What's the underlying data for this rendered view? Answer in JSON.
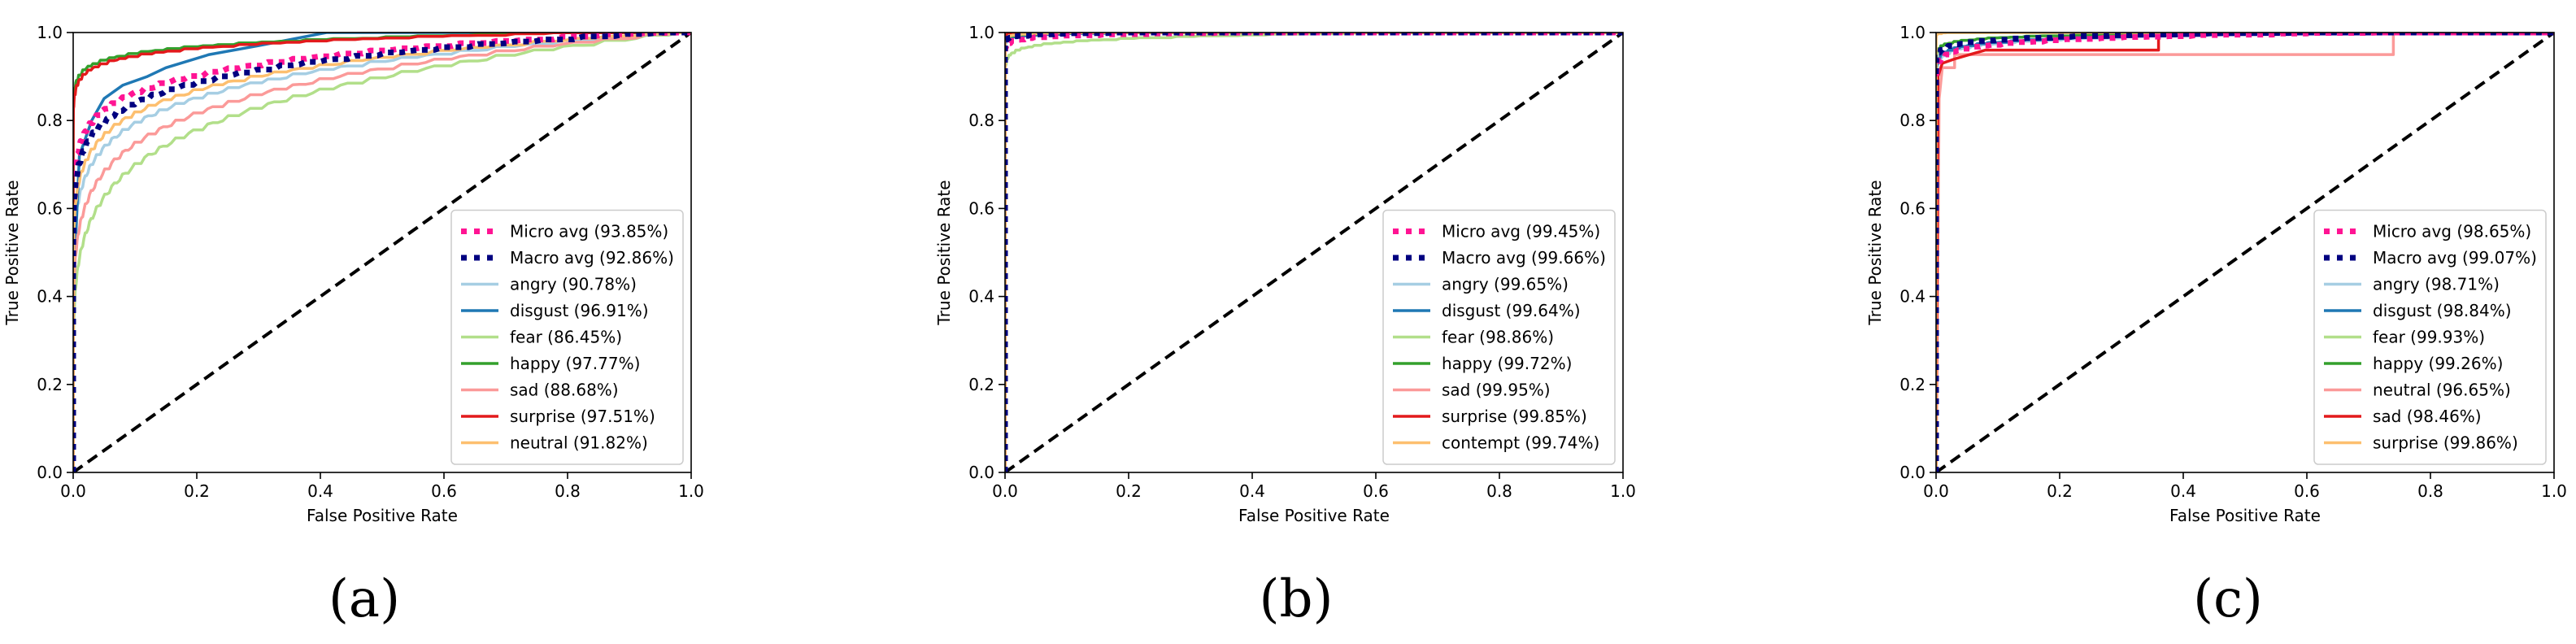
{
  "figure": {
    "panel_labels": [
      "(a)",
      "(b)",
      "(c)"
    ]
  },
  "chart_data": [
    {
      "type": "line",
      "panel": "(a)",
      "xlabel": "False Positive Rate",
      "ylabel": "True Positive Rate",
      "xlim": [
        0,
        1
      ],
      "ylim": [
        0,
        1.0
      ],
      "xticks": [
        "0.0",
        "0.2",
        "0.4",
        "0.6",
        "0.8",
        "1.0"
      ],
      "yticks": [
        "0.0",
        "0.2",
        "0.4",
        "0.6",
        "0.8",
        "1.0"
      ],
      "legend_position": "lower-right",
      "series": [
        {
          "name": "Micro avg",
          "label": "Micro avg (93.85%)",
          "auc": 93.85,
          "color": "#ff1493",
          "style": "dotted"
        },
        {
          "name": "Macro avg",
          "label": "Macro avg (92.86%)",
          "auc": 92.86,
          "color": "#000080",
          "style": "dotted"
        },
        {
          "name": "angry",
          "label": "angry (90.78%)",
          "auc": 90.78,
          "color": "#a6cee3",
          "style": "solid"
        },
        {
          "name": "disgust",
          "label": "disgust (96.91%)",
          "auc": 96.91,
          "color": "#1f78b4",
          "style": "solid",
          "points": [
            [
              0,
              0.4
            ],
            [
              0.01,
              0.72
            ],
            [
              0.03,
              0.8
            ],
            [
              0.05,
              0.85
            ],
            [
              0.08,
              0.88
            ],
            [
              0.12,
              0.9
            ],
            [
              0.15,
              0.92
            ],
            [
              0.22,
              0.95
            ],
            [
              0.3,
              0.97
            ],
            [
              0.41,
              1.0
            ],
            [
              1,
              1.0
            ]
          ]
        },
        {
          "name": "fear",
          "label": "fear (86.45%)",
          "auc": 86.45,
          "color": "#b2df8a",
          "style": "solid"
        },
        {
          "name": "happy",
          "label": "happy (97.77%)",
          "auc": 97.77,
          "color": "#33a02c",
          "style": "solid"
        },
        {
          "name": "sad",
          "label": "sad (88.68%)",
          "auc": 88.68,
          "color": "#fb9a99",
          "style": "solid"
        },
        {
          "name": "surprise",
          "label": "surprise (97.51%)",
          "auc": 97.51,
          "color": "#e31a1c",
          "style": "solid"
        },
        {
          "name": "neutral",
          "label": "neutral (91.82%)",
          "auc": 91.82,
          "color": "#fdbf6f",
          "style": "solid"
        }
      ],
      "chance_line": {
        "points": [
          [
            0,
            0
          ],
          [
            1,
            1
          ]
        ],
        "color": "#000000",
        "style": "dashed"
      }
    },
    {
      "type": "line",
      "panel": "(b)",
      "xlabel": "False Positive Rate",
      "ylabel": "True Positive Rate",
      "xlim": [
        0,
        1
      ],
      "ylim": [
        0,
        1.0
      ],
      "xticks": [
        "0.0",
        "0.2",
        "0.4",
        "0.6",
        "0.8",
        "1.0"
      ],
      "yticks": [
        "0.0",
        "0.2",
        "0.4",
        "0.6",
        "0.8",
        "1.0"
      ],
      "legend_position": "lower-right",
      "series": [
        {
          "name": "Micro avg",
          "label": "Micro avg (99.45%)",
          "auc": 99.45,
          "color": "#ff1493",
          "style": "dotted"
        },
        {
          "name": "Macro avg",
          "label": "Macro avg (99.66%)",
          "auc": 99.66,
          "color": "#000080",
          "style": "dotted"
        },
        {
          "name": "angry",
          "label": "angry (99.65%)",
          "auc": 99.65,
          "color": "#a6cee3",
          "style": "solid"
        },
        {
          "name": "disgust",
          "label": "disgust (99.64%)",
          "auc": 99.64,
          "color": "#1f78b4",
          "style": "solid"
        },
        {
          "name": "fear",
          "label": "fear (98.86%)",
          "auc": 98.86,
          "color": "#b2df8a",
          "style": "solid"
        },
        {
          "name": "happy",
          "label": "happy (99.72%)",
          "auc": 99.72,
          "color": "#33a02c",
          "style": "solid"
        },
        {
          "name": "sad",
          "label": "sad (99.95%)",
          "auc": 99.95,
          "color": "#fb9a99",
          "style": "solid"
        },
        {
          "name": "surprise",
          "label": "surprise (99.85%)",
          "auc": 99.85,
          "color": "#e31a1c",
          "style": "solid"
        },
        {
          "name": "contempt",
          "label": "contempt (99.74%)",
          "auc": 99.74,
          "color": "#fdbf6f",
          "style": "solid"
        }
      ],
      "chance_line": {
        "points": [
          [
            0,
            0
          ],
          [
            1,
            1
          ]
        ],
        "color": "#000000",
        "style": "dashed"
      }
    },
    {
      "type": "line",
      "panel": "(c)",
      "xlabel": "False Positive Rate",
      "ylabel": "True Positive Rate",
      "xlim": [
        0,
        1
      ],
      "ylim": [
        0,
        1.0
      ],
      "xticks": [
        "0.0",
        "0.2",
        "0.4",
        "0.6",
        "0.8",
        "1.0"
      ],
      "yticks": [
        "0.0",
        "0.2",
        "0.4",
        "0.6",
        "0.8",
        "1.0"
      ],
      "legend_position": "lower-right",
      "series": [
        {
          "name": "Micro avg",
          "label": "Micro avg (98.65%)",
          "auc": 98.65,
          "color": "#ff1493",
          "style": "dotted"
        },
        {
          "name": "Macro avg",
          "label": "Macro avg (99.07%)",
          "auc": 99.07,
          "color": "#000080",
          "style": "dotted"
        },
        {
          "name": "angry",
          "label": "angry (98.71%)",
          "auc": 98.71,
          "color": "#a6cee3",
          "style": "solid"
        },
        {
          "name": "disgust",
          "label": "disgust (98.84%)",
          "auc": 98.84,
          "color": "#1f78b4",
          "style": "solid"
        },
        {
          "name": "fear",
          "label": "fear (99.93%)",
          "auc": 99.93,
          "color": "#b2df8a",
          "style": "solid"
        },
        {
          "name": "happy",
          "label": "happy (99.26%)",
          "auc": 99.26,
          "color": "#33a02c",
          "style": "solid"
        },
        {
          "name": "neutral",
          "label": "neutral (96.65%)",
          "auc": 96.65,
          "color": "#fb9a99",
          "style": "solid",
          "points": [
            [
              0,
              0
            ],
            [
              0.005,
              0.85
            ],
            [
              0.01,
              0.92
            ],
            [
              0.03,
              0.92
            ],
            [
              0.03,
              0.95
            ],
            [
              0.74,
              0.95
            ],
            [
              0.74,
              1.0
            ],
            [
              1,
              1.0
            ]
          ]
        },
        {
          "name": "sad",
          "label": "sad (98.46%)",
          "auc": 98.46,
          "color": "#e31a1c",
          "style": "solid",
          "points": [
            [
              0,
              0
            ],
            [
              0.003,
              0.9
            ],
            [
              0.01,
              0.93
            ],
            [
              0.03,
              0.94
            ],
            [
              0.08,
              0.96
            ],
            [
              0.36,
              0.96
            ],
            [
              0.36,
              1.0
            ],
            [
              1,
              1.0
            ]
          ]
        },
        {
          "name": "surprise",
          "label": "surprise (99.86%)",
          "auc": 99.86,
          "color": "#fdbf6f",
          "style": "solid"
        }
      ],
      "chance_line": {
        "points": [
          [
            0,
            0
          ],
          [
            1,
            1
          ]
        ],
        "color": "#000000",
        "style": "dashed"
      }
    }
  ]
}
